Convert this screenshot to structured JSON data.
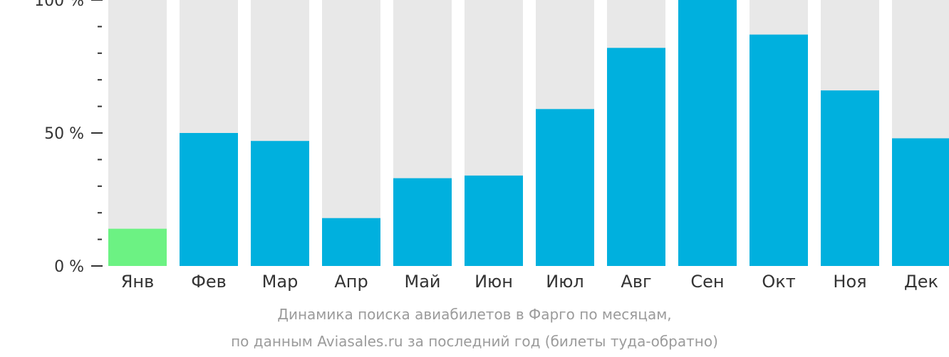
{
  "chart_data": {
    "type": "bar",
    "categories": [
      "Янв",
      "Фев",
      "Мар",
      "Апр",
      "Май",
      "Июн",
      "Июл",
      "Авг",
      "Сен",
      "Окт",
      "Ноя",
      "Дек"
    ],
    "values": [
      14,
      50,
      47,
      18,
      33,
      34,
      59,
      82,
      100,
      87,
      66,
      48
    ],
    "ylim": [
      0,
      100
    ],
    "y_ticks": [
      {
        "value": 100,
        "label": "100 %"
      },
      {
        "value": 50,
        "label": "50 %"
      },
      {
        "value": 0,
        "label": "0 %"
      }
    ],
    "y_minor_ticks": [
      10,
      20,
      30,
      40,
      60,
      70,
      80,
      90
    ],
    "highlight_index": 0,
    "colors": {
      "bar": "#00b0de",
      "highlight": "#6cf283",
      "background_bar": "#e8e8e8",
      "axis": "#333333",
      "tick_label": "#333333",
      "category_label": "#333333"
    }
  },
  "caption": {
    "line1": "Динамика поиска авиабилетов в Фарго по месяцам,",
    "line2": "по данным Aviasales.ru за последний год (билеты туда-обратно)"
  }
}
